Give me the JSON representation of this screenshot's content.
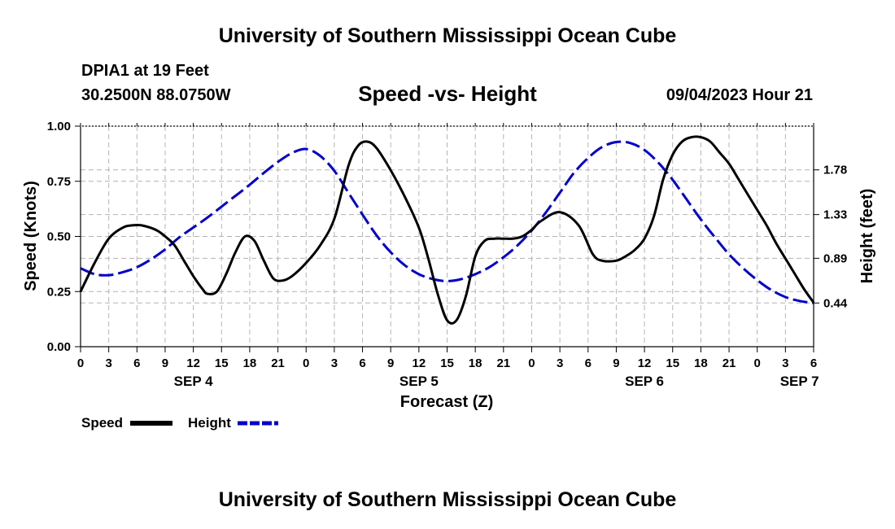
{
  "header": {
    "title": "University of Southern Mississippi Ocean Cube",
    "station": "DPIA1 at 19 Feet",
    "coords": "30.2500N  88.0750W",
    "subtitle": "Speed -vs- Height",
    "datestamp": "09/04/2023 Hour 21"
  },
  "footer": {
    "title": "University of Southern Mississippi Ocean Cube"
  },
  "legend": {
    "speed_label": "Speed",
    "height_label": "Height"
  },
  "colors": {
    "speed": "#000000",
    "height": "#0000cc",
    "grid": "#b4b4b4"
  },
  "chart_data": {
    "type": "line",
    "title": "Speed -vs- Height",
    "xlabel": "Forecast (Z)",
    "ylabel": "Speed (Knots)",
    "y2label": "Height (feet)",
    "x_unit": "hours since 09/04 00Z",
    "xlim": [
      0,
      78
    ],
    "ylim": [
      0,
      1
    ],
    "y2lim": [
      0.0,
      2.22
    ],
    "x_ticks": [
      0,
      3,
      6,
      9,
      12,
      15,
      18,
      21,
      24,
      27,
      30,
      33,
      36,
      39,
      42,
      45,
      48,
      51,
      54,
      57,
      60,
      63,
      66,
      69,
      72,
      75,
      78
    ],
    "x_tick_labels": [
      "0",
      "3",
      "6",
      "9",
      "12",
      "15",
      "18",
      "21",
      "0",
      "3",
      "6",
      "9",
      "12",
      "15",
      "18",
      "21",
      "0",
      "3",
      "6",
      "9",
      "12",
      "15",
      "18",
      "21",
      "0",
      "3",
      "6"
    ],
    "y_ticks": [
      0,
      0.25,
      0.5,
      0.75,
      1.0
    ],
    "y_tick_labels": [
      "0.00",
      "0.25",
      "0.50",
      "0.75",
      "1.00"
    ],
    "y2_ticks": [
      0.44,
      0.89,
      1.33,
      1.78
    ],
    "y2_tick_labels": [
      "0.44",
      "0.89",
      "1.33",
      "1.78"
    ],
    "date_labels": [
      {
        "x": 12,
        "label": "SEP 4"
      },
      {
        "x": 36,
        "label": "SEP 5"
      },
      {
        "x": 60,
        "label": "SEP 6"
      },
      {
        "x": 76.5,
        "label": "SEP 7"
      }
    ],
    "series": [
      {
        "name": "Speed",
        "axis": "left",
        "style": "solid",
        "x": [
          0,
          1.5,
          3,
          4.5,
          5.5,
          6.5,
          8,
          9,
          10,
          11,
          12,
          13,
          13.5,
          14.5,
          15.5,
          16.5,
          17.5,
          18.5,
          19.5,
          20.5,
          21.5,
          22.5,
          24,
          25.5,
          27,
          28.5,
          29.5,
          30.5,
          31.5,
          33,
          34.5,
          36,
          37,
          38,
          39,
          40,
          41,
          42,
          43,
          44,
          45,
          46,
          47,
          48,
          49,
          51,
          53,
          54.5,
          55.5,
          57,
          58,
          59,
          60,
          61,
          62,
          63,
          64,
          65,
          66,
          67,
          68,
          69,
          70,
          71,
          72,
          73,
          74,
          75,
          76,
          77,
          78
        ],
        "y": [
          0.25,
          0.38,
          0.49,
          0.54,
          0.55,
          0.55,
          0.53,
          0.5,
          0.46,
          0.39,
          0.32,
          0.26,
          0.24,
          0.25,
          0.33,
          0.43,
          0.5,
          0.48,
          0.39,
          0.31,
          0.3,
          0.32,
          0.38,
          0.46,
          0.58,
          0.82,
          0.91,
          0.93,
          0.9,
          0.8,
          0.68,
          0.54,
          0.4,
          0.24,
          0.12,
          0.12,
          0.23,
          0.41,
          0.48,
          0.49,
          0.49,
          0.49,
          0.5,
          0.53,
          0.57,
          0.61,
          0.55,
          0.42,
          0.39,
          0.39,
          0.41,
          0.44,
          0.49,
          0.59,
          0.76,
          0.87,
          0.93,
          0.95,
          0.95,
          0.93,
          0.88,
          0.83,
          0.76,
          0.69,
          0.62,
          0.55,
          0.47,
          0.4,
          0.33,
          0.26,
          0.2
        ]
      },
      {
        "name": "Height",
        "axis": "right",
        "style": "dashed",
        "x": [
          0,
          1.5,
          3,
          4.5,
          6,
          7.5,
          9,
          10.5,
          12,
          13.5,
          15,
          16.5,
          18,
          19.5,
          21,
          22.5,
          24,
          25.5,
          27,
          28.5,
          30,
          31.5,
          33,
          34.5,
          36,
          37.5,
          39,
          40.5,
          42,
          43.5,
          45,
          46.5,
          48,
          49.5,
          51,
          52.5,
          54,
          55.5,
          57,
          58.5,
          60,
          61.5,
          63,
          64.5,
          66,
          67.5,
          69,
          70.5,
          72,
          73.5,
          75,
          76.5,
          78
        ],
        "y": [
          0.79,
          0.73,
          0.72,
          0.75,
          0.8,
          0.88,
          0.98,
          1.1,
          1.2,
          1.3,
          1.41,
          1.52,
          1.63,
          1.75,
          1.86,
          1.95,
          1.99,
          1.92,
          1.77,
          1.55,
          1.33,
          1.12,
          0.95,
          0.82,
          0.73,
          0.68,
          0.66,
          0.68,
          0.73,
          0.8,
          0.9,
          1.02,
          1.17,
          1.35,
          1.55,
          1.75,
          1.9,
          2.01,
          2.06,
          2.05,
          1.98,
          1.85,
          1.68,
          1.48,
          1.28,
          1.1,
          0.93,
          0.79,
          0.67,
          0.57,
          0.5,
          0.46,
          0.44
        ]
      }
    ]
  }
}
